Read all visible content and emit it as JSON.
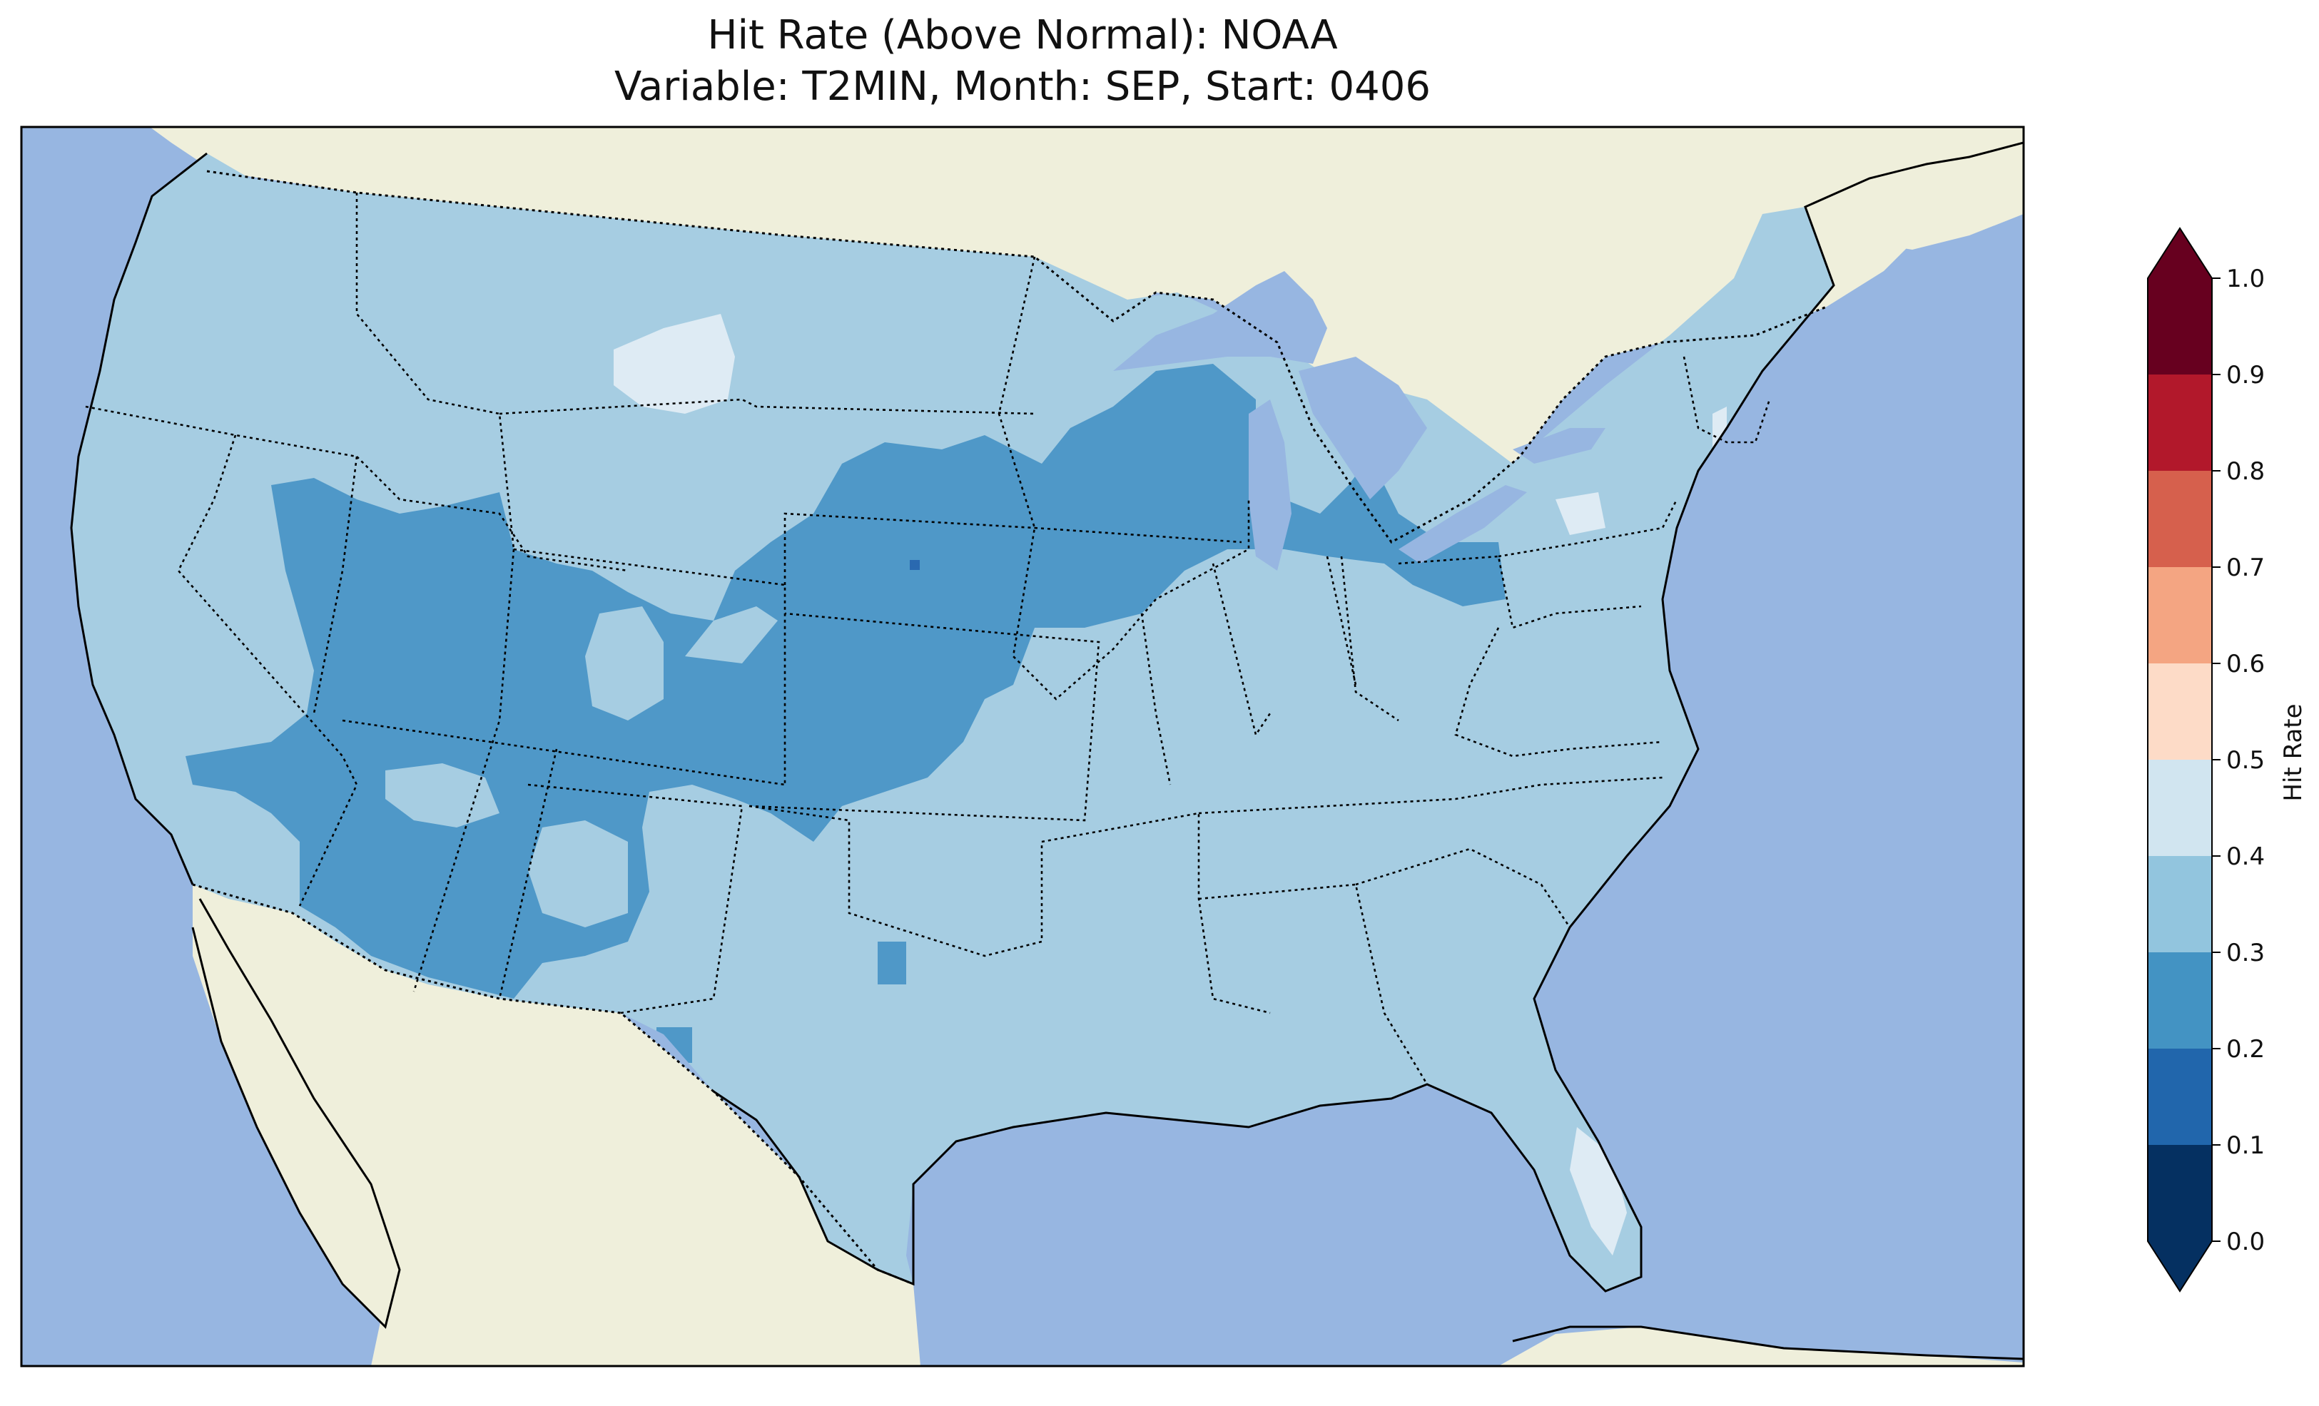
{
  "title_line1": "Hit Rate (Above Normal): NOAA",
  "title_line2": "Variable: T2MIN, Month: SEP, Start: 0406",
  "colors": {
    "ocean": "#97b6e1",
    "land": "#efefdb",
    "lakes": "#97b6e1"
  },
  "colorbar": {
    "label": "Hit Rate",
    "ticks": [
      "0.0",
      "0.1",
      "0.2",
      "0.3",
      "0.4",
      "0.5",
      "0.6",
      "0.7",
      "0.8",
      "0.9",
      "1.0"
    ],
    "bins": [
      {
        "from": 0.0,
        "to": 0.1,
        "color": "#053061"
      },
      {
        "from": 0.1,
        "to": 0.2,
        "color": "#2166ac"
      },
      {
        "from": 0.2,
        "to": 0.3,
        "color": "#4393c3"
      },
      {
        "from": 0.3,
        "to": 0.4,
        "color": "#92c5de"
      },
      {
        "from": 0.4,
        "to": 0.5,
        "color": "#d1e5f0"
      },
      {
        "from": 0.5,
        "to": 0.6,
        "color": "#fddbc7"
      },
      {
        "from": 0.6,
        "to": 0.7,
        "color": "#f4a582"
      },
      {
        "from": 0.7,
        "to": 0.8,
        "color": "#d6604d"
      },
      {
        "from": 0.8,
        "to": 0.9,
        "color": "#b2182b"
      },
      {
        "from": 0.9,
        "to": 1.0,
        "color": "#67001f"
      }
    ],
    "extend_under_color": "#053061",
    "extend_over_color": "#67001f"
  },
  "field_colors": {
    "base": "#a6cde2",
    "low": "#4f98c8",
    "high": "#deebf4",
    "lowest": "#2a69b0"
  }
}
